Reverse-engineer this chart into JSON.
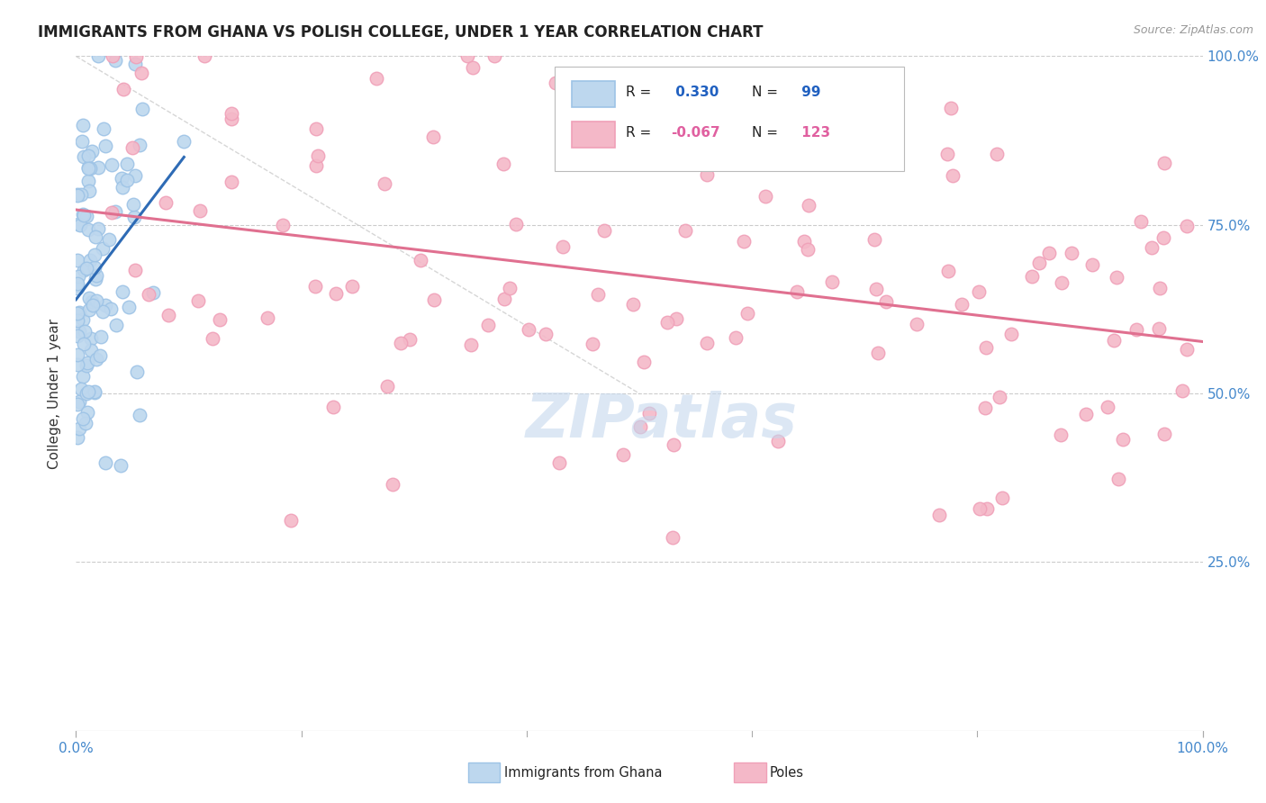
{
  "title": "IMMIGRANTS FROM GHANA VS POLISH COLLEGE, UNDER 1 YEAR CORRELATION CHART",
  "source": "Source: ZipAtlas.com",
  "ylabel": "College, Under 1 year",
  "ghana_R": 0.33,
  "ghana_N": 99,
  "poles_R": -0.067,
  "poles_N": 123,
  "ghana_fill": "#bdd7ee",
  "ghana_edge": "#9dc3e6",
  "poles_fill": "#f4b8c8",
  "poles_edge": "#f0a0b8",
  "trend_blue": "#2e6bb5",
  "trend_pink": "#e07090",
  "watermark_color": "#c5d8ee",
  "background": "#ffffff",
  "legend_R_color": "#2060c0",
  "legend_Rn_color": "#e060a0",
  "grid_color": "#cccccc",
  "ref_line_color": "#cccccc",
  "tick_color": "#4488cc",
  "title_color": "#222222",
  "source_color": "#999999"
}
